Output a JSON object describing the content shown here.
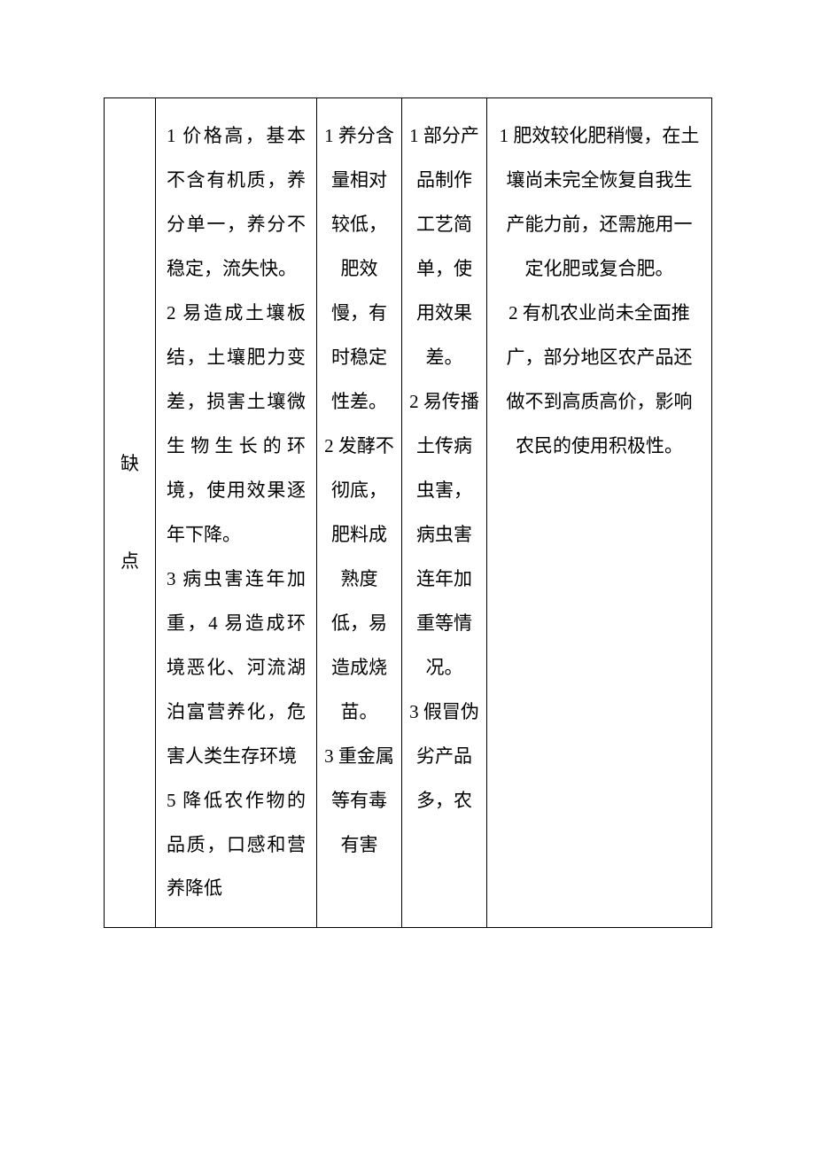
{
  "table": {
    "header_char_1": "缺",
    "header_char_2": "点",
    "col1": {
      "p1": "1 价格高，基本不含有机质，养分单一，养分不稳定，流失快。",
      "p2": "2 易造成土壤板结，土壤肥力变差，损害土壤微生物生长的环境，使用效果逐年下降。",
      "p3": "3 病虫害连年加重，4 易造成环境恶化、河流湖泊富营养化，危害人类生存环境",
      "p4": "5 降低农作物的品质，口感和营养降低"
    },
    "col2": {
      "p1": "1 养分含量相对较低，肥效慢，有时稳定性差。",
      "p2": "2 发酵不彻底，肥料成熟度低，易造成烧苗。",
      "p3": "3 重金属等有毒有害"
    },
    "col3": {
      "p1": "1 部分产品制作工艺简单，使用效果差。",
      "p2": "2 易传播土传病虫害，病虫害连年加重等情况。",
      "p3": "3 假冒伪劣产品多，农"
    },
    "col4": {
      "p1": "1 肥效较化肥稍慢，在土壤尚未完全恢复自我生产能力前，还需施用一定化肥或复合肥。",
      "p2": "2 有机农业尚未全面推广，部分地区农产品还做不到高质高价，影响农民的使用积极性。"
    }
  },
  "style": {
    "background_color": "#ffffff",
    "border_color": "#000000",
    "text_color": "#000000",
    "font_size": 21,
    "line_height": 2.38
  }
}
